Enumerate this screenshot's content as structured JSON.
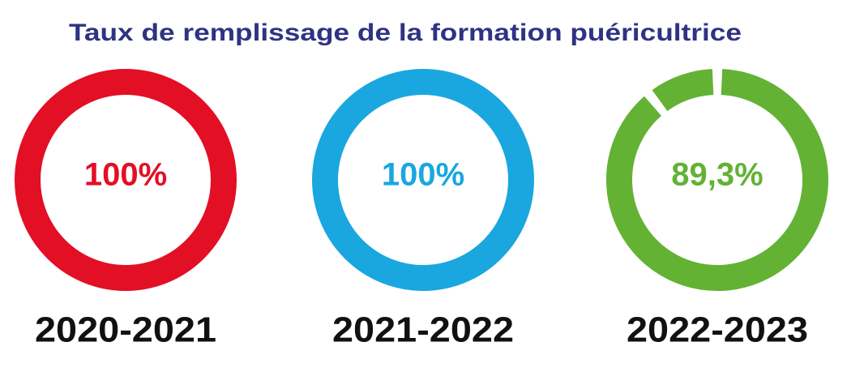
{
  "title": "Taux de remplissage de la formation puéricultrice",
  "chart_data": [
    {
      "type": "donut",
      "label": "2020-2021",
      "values": [
        100
      ],
      "value_labels": [
        "100%"
      ],
      "color": "#e30f25"
    },
    {
      "type": "donut",
      "label": "2021-2022",
      "values": [
        100
      ],
      "value_labels": [
        "100%"
      ],
      "color": "#1aa7df"
    },
    {
      "type": "donut",
      "label": "2022-2023",
      "values": [
        89.3
      ],
      "value_labels": [
        "89,3%"
      ],
      "color": "#63b234"
    }
  ]
}
